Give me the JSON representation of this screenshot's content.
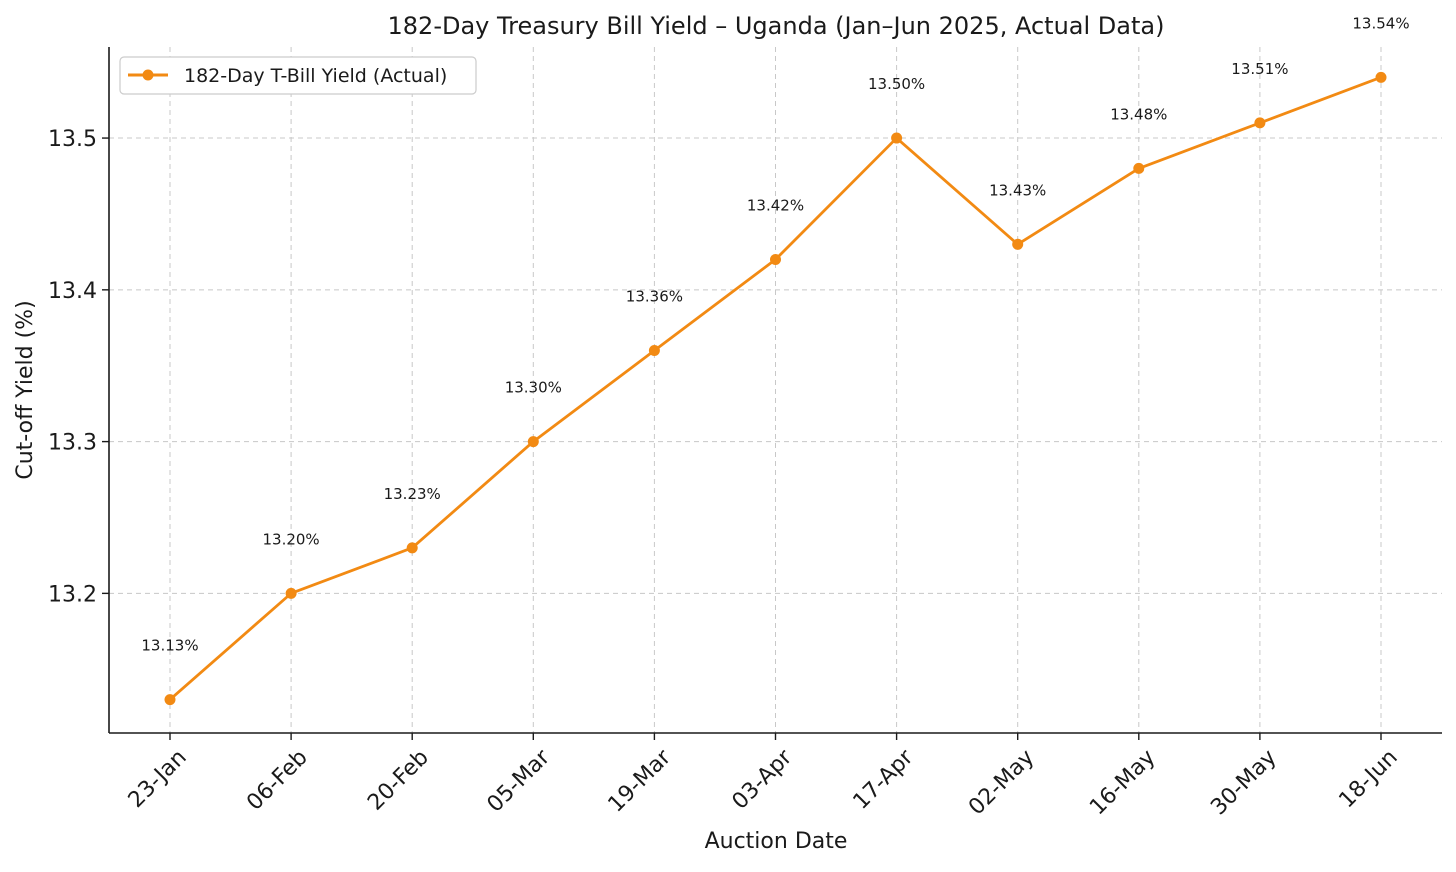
{
  "chart_data": {
    "type": "line",
    "title": "182-Day Treasury Bill Yield – Uganda (Jan–Jun 2025, Actual Data)",
    "xlabel": "Auction Date",
    "ylabel": "Cut-off Yield (%)",
    "categories": [
      "23-Jan",
      "06-Feb",
      "20-Feb",
      "05-Mar",
      "19-Mar",
      "03-Apr",
      "17-Apr",
      "02-May",
      "16-May",
      "30-May",
      "18-Jun"
    ],
    "series": [
      {
        "name": "182-Day T-Bill Yield (Actual)",
        "color": "#f28a13",
        "values": [
          13.13,
          13.2,
          13.23,
          13.3,
          13.36,
          13.42,
          13.5,
          13.43,
          13.48,
          13.51,
          13.54
        ],
        "labels": [
          "13.13%",
          "13.20%",
          "13.23%",
          "13.30%",
          "13.36%",
          "13.42%",
          "13.50%",
          "13.43%",
          "13.48%",
          "13.51%",
          "13.54%"
        ]
      }
    ],
    "y_ticks": [
      13.2,
      13.3,
      13.4,
      13.5
    ],
    "y_tick_labels": [
      "13.2",
      "13.3",
      "13.4",
      "13.5"
    ],
    "ylim": [
      13.108,
      13.56
    ],
    "grid": true,
    "grid_style": "dashed",
    "legend_position": "top-left"
  }
}
